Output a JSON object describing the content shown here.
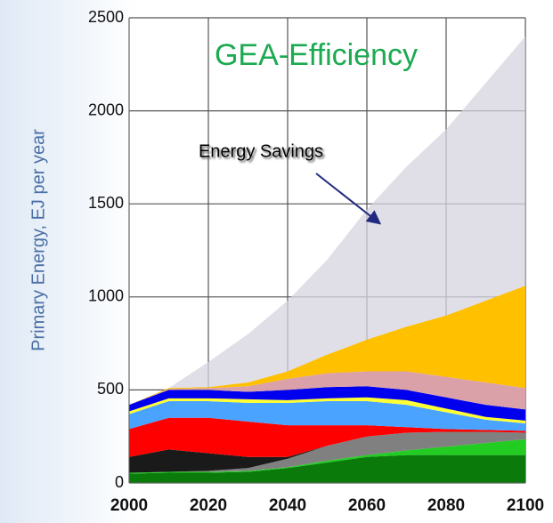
{
  "chart_data": {
    "type": "stacked_area",
    "title": "GEA-Efficiency",
    "y_label": "Primary Energy,  EJ per year",
    "annotation": "Energy Savings",
    "x": [
      2000,
      2010,
      2020,
      2030,
      2040,
      2050,
      2060,
      2070,
      2080,
      2090,
      2100
    ],
    "series": [
      {
        "color": "#0a7a0a",
        "values": [
          50,
          55,
          55,
          60,
          80,
          110,
          140,
          150,
          150,
          150,
          150
        ]
      },
      {
        "color": "#22cc22",
        "values": [
          5,
          5,
          5,
          5,
          5,
          10,
          10,
          25,
          45,
          65,
          85
        ]
      },
      {
        "color": "#808080",
        "values": [
          0,
          0,
          5,
          15,
          45,
          80,
          100,
          95,
          80,
          60,
          35
        ]
      },
      {
        "color": "#1a1a1a",
        "values": [
          85,
          120,
          95,
          60,
          10,
          0,
          0,
          0,
          0,
          0,
          0
        ]
      },
      {
        "color": "#ff0000",
        "values": [
          150,
          170,
          190,
          190,
          170,
          110,
          60,
          30,
          15,
          10,
          10
        ]
      },
      {
        "color": "#4aa3ff",
        "values": [
          80,
          90,
          90,
          100,
          120,
          130,
          130,
          120,
          90,
          55,
          40
        ]
      },
      {
        "color": "#ffff33",
        "values": [
          15,
          15,
          15,
          20,
          15,
          15,
          20,
          25,
          20,
          15,
          15
        ]
      },
      {
        "color": "#0000ee",
        "values": [
          35,
          45,
          45,
          40,
          55,
          60,
          60,
          55,
          60,
          65,
          60
        ]
      },
      {
        "color": "#dba1a8",
        "values": [
          0,
          5,
          10,
          30,
          60,
          75,
          80,
          100,
          110,
          120,
          115
        ]
      },
      {
        "color": "#ffc000",
        "values": [
          0,
          5,
          5,
          20,
          40,
          100,
          170,
          240,
          330,
          440,
          550
        ]
      },
      {
        "color": "#d6d3de",
        "values": [
          0,
          0,
          135,
          260,
          380,
          510,
          700,
          860,
          1000,
          1170,
          1340
        ]
      }
    ],
    "xlim": [
      2000,
      2100
    ],
    "xticks": [
      2000,
      2020,
      2040,
      2060,
      2080,
      2100
    ],
    "ylim": [
      0,
      2500
    ],
    "yticks": [
      0,
      500,
      1000,
      1500,
      2000,
      2500
    ],
    "grid": true
  }
}
